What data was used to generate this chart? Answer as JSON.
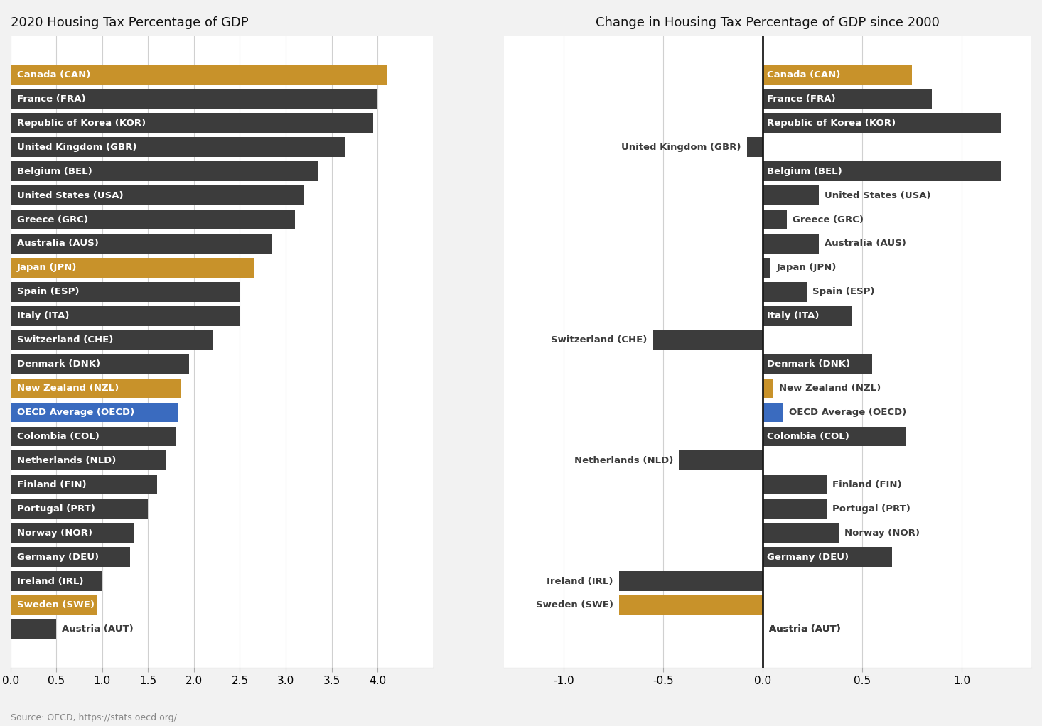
{
  "countries": [
    "Canada (CAN)",
    "France (FRA)",
    "Republic of Korea (KOR)",
    "United Kingdom (GBR)",
    "Belgium (BEL)",
    "United States (USA)",
    "Greece (GRC)",
    "Australia (AUS)",
    "Japan (JPN)",
    "Spain (ESP)",
    "Italy (ITA)",
    "Switzerland (CHE)",
    "Denmark (DNK)",
    "New Zealand (NZL)",
    "OECD Average (OECD)",
    "Colombia (COL)",
    "Netherlands (NLD)",
    "Finland (FIN)",
    "Portugal (PRT)",
    "Norway (NOR)",
    "Germany (DEU)",
    "Ireland (IRL)",
    "Sweden (SWE)",
    "Austria (AUT)"
  ],
  "values_2020": [
    4.1,
    4.0,
    3.95,
    3.65,
    3.35,
    3.2,
    3.1,
    2.85,
    2.65,
    2.5,
    2.5,
    2.2,
    1.95,
    1.85,
    1.83,
    1.8,
    1.7,
    1.6,
    1.5,
    1.35,
    1.3,
    1.0,
    0.95,
    0.5
  ],
  "values_change": [
    0.75,
    0.85,
    1.2,
    -0.08,
    1.2,
    0.28,
    0.12,
    0.28,
    0.04,
    0.22,
    0.45,
    -0.55,
    0.55,
    0.05,
    0.1,
    0.72,
    -0.42,
    0.32,
    0.32,
    0.38,
    0.65,
    -0.72,
    -0.72,
    0.0
  ],
  "colors_2020": [
    "#c8922a",
    "#3c3c3c",
    "#3c3c3c",
    "#3c3c3c",
    "#3c3c3c",
    "#3c3c3c",
    "#3c3c3c",
    "#3c3c3c",
    "#c8922a",
    "#3c3c3c",
    "#3c3c3c",
    "#3c3c3c",
    "#3c3c3c",
    "#c8922a",
    "#3a6bbf",
    "#3c3c3c",
    "#3c3c3c",
    "#3c3c3c",
    "#3c3c3c",
    "#3c3c3c",
    "#3c3c3c",
    "#3c3c3c",
    "#c8922a",
    "#3c3c3c"
  ],
  "colors_change": [
    "#c8922a",
    "#3c3c3c",
    "#3c3c3c",
    "#3c3c3c",
    "#3c3c3c",
    "#3c3c3c",
    "#3c3c3c",
    "#3c3c3c",
    "#3c3c3c",
    "#3c3c3c",
    "#3c3c3c",
    "#3c3c3c",
    "#3c3c3c",
    "#c8922a",
    "#3a6bbf",
    "#3c3c3c",
    "#3c3c3c",
    "#3c3c3c",
    "#3c3c3c",
    "#3c3c3c",
    "#3c3c3c",
    "#3c3c3c",
    "#c8922a",
    "#3c3c3c"
  ],
  "title_left": "2020 Housing Tax Percentage of GDP",
  "title_right": "Change in Housing Tax Percentage of GDP since 2000",
  "xlim_left": [
    0.0,
    4.6
  ],
  "xlim_right": [
    -1.3,
    1.35
  ],
  "xticks_left": [
    0.0,
    0.5,
    1.0,
    1.5,
    2.0,
    2.5,
    3.0,
    3.5,
    4.0
  ],
  "xticks_right": [
    -1.0,
    -0.5,
    0.0,
    0.5,
    1.0
  ],
  "source_text": "Source: OECD, https://stats.oecd.org/",
  "bg_color": "#f2f2f2",
  "panel_color": "#ffffff",
  "white": "#ffffff",
  "dark": "#3c3c3c",
  "label_outside_left": [
    false,
    false,
    false,
    false,
    false,
    false,
    false,
    false,
    false,
    false,
    false,
    false,
    false,
    false,
    false,
    false,
    false,
    false,
    false,
    false,
    false,
    false,
    false,
    true
  ],
  "right_label_side": [
    "right",
    "right",
    "right",
    "left",
    "right",
    "right",
    "right",
    "right",
    "right",
    "right",
    "right",
    "left",
    "right",
    "right",
    "right",
    "right",
    "left",
    "right",
    "right",
    "right",
    "right",
    "left",
    "left",
    "right"
  ],
  "right_label_inside": [
    true,
    true,
    true,
    false,
    true,
    false,
    false,
    false,
    false,
    false,
    true,
    false,
    true,
    false,
    false,
    true,
    false,
    false,
    false,
    false,
    true,
    false,
    false,
    false
  ]
}
